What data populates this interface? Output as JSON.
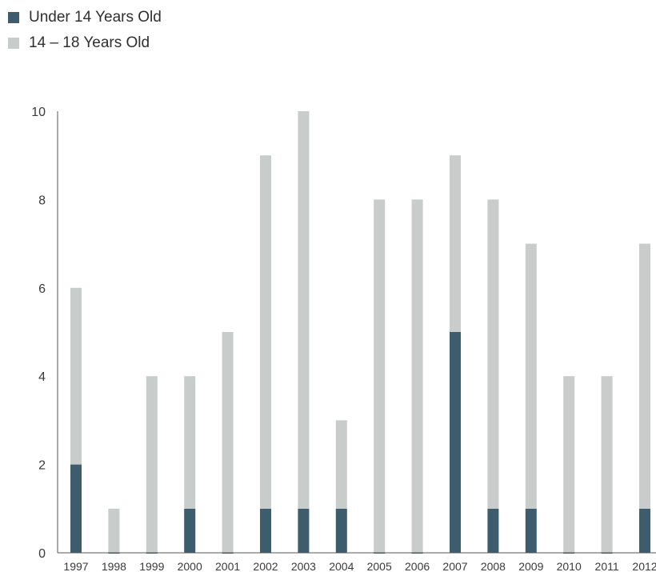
{
  "chart_data": {
    "type": "bar",
    "stacked": true,
    "categories": [
      "1997",
      "1998",
      "1999",
      "2000",
      "2001",
      "2002",
      "2003",
      "2004",
      "2005",
      "2006",
      "2007",
      "2008",
      "2009",
      "2010",
      "2011",
      "2012"
    ],
    "series": [
      {
        "name": "Under 14 Years Old",
        "color": "#3d5c6c",
        "values": [
          2,
          0,
          0,
          1,
          0,
          1,
          1,
          1,
          0,
          0,
          5,
          1,
          1,
          0,
          0,
          1
        ]
      },
      {
        "name": "14 – 18 Years Old",
        "color": "#c8cccb",
        "values": [
          4,
          1,
          4,
          3,
          5,
          8,
          9,
          2,
          8,
          8,
          4,
          7,
          6,
          4,
          4,
          6
        ]
      }
    ],
    "y_ticks": [
      0,
      2,
      4,
      6,
      8,
      10
    ],
    "ylim": [
      0,
      10
    ],
    "legend_position": "top-left",
    "grid": false
  }
}
